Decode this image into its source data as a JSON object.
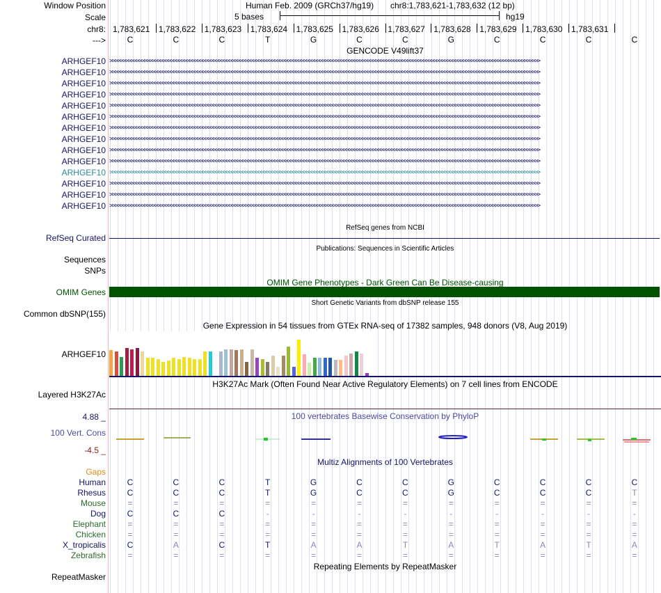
{
  "header": {
    "window_position_label": "Window Position",
    "assembly_title": "Human Feb. 2009 (GRCh37/hg19)",
    "position_text": "chr8:1,783,621-1,783,632 (12 bp)",
    "scale_label": "Scale",
    "scale_text": "5 bases",
    "scale_db": "hg19",
    "chrom_label": "chr8:",
    "strand_label": "--->"
  },
  "coordinates": [
    "1,783,621",
    "1,783,622",
    "1,783,623",
    "1,783,624",
    "1,783,625",
    "1,783,626",
    "1,783,627",
    "1,783,628",
    "1,783,629",
    "1,783,630",
    "1,783,631"
  ],
  "bases": [
    "C",
    "C",
    "C",
    "T",
    "G",
    "C",
    "C",
    "G",
    "C",
    "C",
    "C",
    "C"
  ],
  "gencode": {
    "title": "GENCODE V49lift37",
    "genes": [
      "ARHGEF10",
      "ARHGEF10",
      "ARHGEF10",
      "ARHGEF10",
      "ARHGEF10",
      "ARHGEF10",
      "ARHGEF10",
      "ARHGEF10",
      "ARHGEF10",
      "ARHGEF10",
      "ARHGEF10",
      "ARHGEF10",
      "ARHGEF10",
      "ARHGEF10"
    ],
    "arrows": ">>>>>>>>>>>>>>>>>>>>>>>>>>>>>>>>>>>>>>>>>>>>>>>>>>>>>>>>>>>>>>>>>>>>>>>>>>>>>>>>>>>>>>>>>>>>>>>>>>>>>>>>>>>>>>>>>>>>>>>>>>>>>>>>>>>>>>>>>>>>>>>>>>>>>>>>>>>>>>>>>>",
    "highlight_color": "#2a8a9a",
    "gene_color": "#141466"
  },
  "refseq": {
    "title": "RefSeq genes from NCBI",
    "label": "RefSeq Curated"
  },
  "publications": {
    "title": "Publications: Sequences in Scientific Articles",
    "label_1": "Sequences",
    "label_2": "SNPs"
  },
  "omim": {
    "title": "OMIM Gene Phenotypes - Dark Green Can Be Disease-causing",
    "label": "OMIM Genes",
    "color": "#005200"
  },
  "dbsnp": {
    "title": "Short Genetic Variants from dbSNP release 155",
    "label": "Common dbSNP(155)"
  },
  "gtex": {
    "title": "Gene Expression in 54 tissues from GTEx RNA-seq of 17382 samples, 948 donors (V8, Aug 2019)",
    "label": "ARHGEF10",
    "bars": [
      {
        "v": 0.58,
        "c": "#f5a546"
      },
      {
        "v": 0.55,
        "c": "#d4503e"
      },
      {
        "v": 0.42,
        "c": "#2a9c5a"
      },
      {
        "v": 0.62,
        "c": "#a02040"
      },
      {
        "v": 0.6,
        "c": "#c01a52"
      },
      {
        "v": 0.62,
        "c": "#8a1a3a"
      },
      {
        "v": 0.55,
        "c": "#e8d8a0"
      },
      {
        "v": 0.4,
        "c": "#eee022"
      },
      {
        "v": 0.4,
        "c": "#eee022"
      },
      {
        "v": 0.38,
        "c": "#eee022"
      },
      {
        "v": 0.32,
        "c": "#eee022"
      },
      {
        "v": 0.35,
        "c": "#eee022"
      },
      {
        "v": 0.4,
        "c": "#eee022"
      },
      {
        "v": 0.38,
        "c": "#eee022"
      },
      {
        "v": 0.42,
        "c": "#eee022"
      },
      {
        "v": 0.4,
        "c": "#eee022"
      },
      {
        "v": 0.38,
        "c": "#eee022"
      },
      {
        "v": 0.38,
        "c": "#eee022"
      },
      {
        "v": 0.55,
        "c": "#eee022"
      },
      {
        "v": 0.55,
        "c": "#22ccd0"
      },
      {
        "v": 0.12,
        "c": "#ffffff"
      },
      {
        "v": 0.55,
        "c": "#a8b8c8"
      },
      {
        "v": 0.6,
        "c": "#9ac0d8"
      },
      {
        "v": 0.6,
        "c": "#c0a8a0"
      },
      {
        "v": 0.58,
        "c": "#a07860"
      },
      {
        "v": 0.6,
        "c": "#c8b090"
      },
      {
        "v": 0.32,
        "c": "#886644"
      },
      {
        "v": 0.6,
        "c": "#c8b8a8"
      },
      {
        "v": 0.4,
        "c": "#9944bb"
      },
      {
        "v": 0.38,
        "c": "#aabb33"
      },
      {
        "v": 0.32,
        "c": "#887766"
      },
      {
        "v": 0.45,
        "c": "#ddccaa"
      },
      {
        "v": 0.2,
        "c": "#e8e0c8"
      },
      {
        "v": 0.45,
        "c": "#aa8866"
      },
      {
        "v": 0.65,
        "c": "#99bb33"
      },
      {
        "v": 0.2,
        "c": "#5566dd"
      },
      {
        "v": 0.82,
        "c": "#ffee00"
      },
      {
        "v": 0.48,
        "c": "#ffaaaa"
      },
      {
        "v": 0.3,
        "c": "#cceeaa"
      },
      {
        "v": 0.4,
        "c": "#44aa44"
      },
      {
        "v": 0.4,
        "c": "#88bbdd"
      },
      {
        "v": 0.4,
        "c": "#3366cc"
      },
      {
        "v": 0.4,
        "c": "#2255aa"
      },
      {
        "v": 0.36,
        "c": "#bbbbbb"
      },
      {
        "v": 0.36,
        "c": "#ffbb88"
      },
      {
        "v": 0.45,
        "c": "#f0c8c8"
      },
      {
        "v": 0.5,
        "c": "#c8a8a8"
      },
      {
        "v": 0.55,
        "c": "#118844"
      },
      {
        "v": 0.5,
        "c": "#ead0d8"
      },
      {
        "v": 0.06,
        "c": "#aa33cc"
      }
    ]
  },
  "h3k27ac": {
    "title": "H3K27Ac Mark (Often Found Near Active Regulatory Elements) on 7 cell lines from ENCODE",
    "label": "Layered H3K27Ac"
  },
  "conservation": {
    "title": "100 vertebrates Basewise Conservation by PhyloP",
    "label": "100 Vert. Cons",
    "max": "4.88 _",
    "min": "-4.5 _"
  },
  "multiz": {
    "title": "Multiz Alignments of 100 Vertebrates",
    "gaps_label": "Gaps",
    "species": [
      {
        "name": "Human",
        "color": "#141466",
        "bases": [
          "C",
          "C",
          "C",
          "T",
          "G",
          "C",
          "C",
          "G",
          "C",
          "C",
          "C",
          "C"
        ]
      },
      {
        "name": "Rhesus",
        "color": "#141466",
        "bases": [
          "C",
          "C",
          "C",
          "T",
          "G",
          "C",
          "C",
          "G",
          "C",
          "C",
          "C",
          "T"
        ]
      },
      {
        "name": "Mouse",
        "color": "#2a6a2a",
        "bases": [
          "=",
          "=",
          "=",
          "=",
          "=",
          "=",
          "=",
          "=",
          "=",
          "=",
          "=",
          "="
        ]
      },
      {
        "name": "Dog",
        "color": "#141466",
        "bases": [
          "C",
          "C",
          "C",
          "-",
          "-",
          "-",
          "-",
          "-",
          "-",
          "-",
          "-",
          "-"
        ]
      },
      {
        "name": "Elephant",
        "color": "#2a6a2a",
        "bases": [
          "=",
          "=",
          "=",
          "=",
          "=",
          "=",
          "=",
          "=",
          "=",
          "=",
          "=",
          "="
        ]
      },
      {
        "name": "Chicken",
        "color": "#2a6a2a",
        "bases": [
          "=",
          "=",
          "=",
          "=",
          "=",
          "=",
          "=",
          "=",
          "=",
          "=",
          "=",
          "="
        ]
      },
      {
        "name": "X_tropicalis",
        "color": "#141466",
        "bases": [
          "C",
          "A",
          "C",
          "T",
          "A",
          "A",
          "T",
          "A",
          "T",
          "A",
          "T",
          "A"
        ]
      },
      {
        "name": "Zebrafish",
        "color": "#2a6a2a",
        "bases": [
          "=",
          "=",
          "=",
          "=",
          "=",
          "=",
          "=",
          "=",
          "=",
          "=",
          "=",
          "="
        ]
      }
    ]
  },
  "repeatmasker": {
    "title": "Repeating Elements by RepeatMasker",
    "label": "RepeatMasker"
  }
}
